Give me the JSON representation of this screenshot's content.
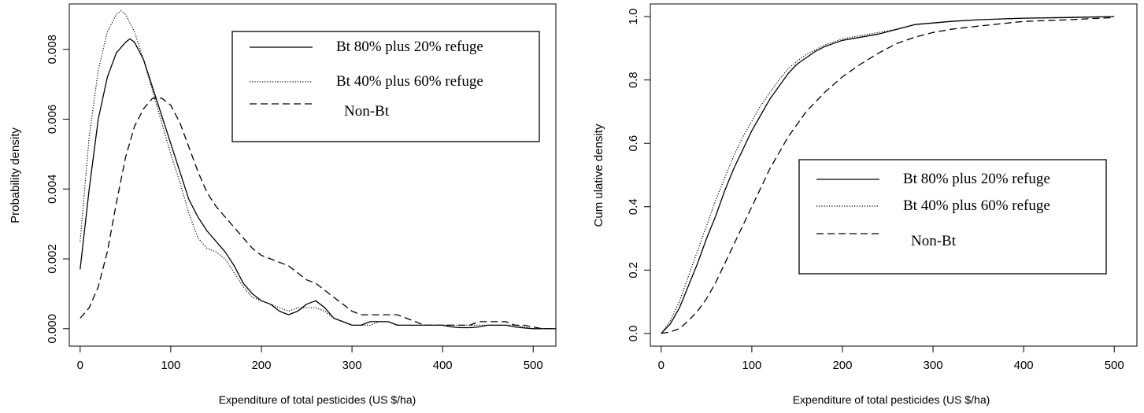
{
  "chart_data": [
    {
      "type": "line",
      "title": "",
      "xlabel": "Expenditure of total pesticides (US $/ha)",
      "ylabel": "Probability density",
      "xlim": [
        -12,
        525
      ],
      "ylim": [
        -0.0005,
        0.0093
      ],
      "xticks": [
        "0",
        "100",
        "200",
        "300",
        "400",
        "500"
      ],
      "yticks": [
        "0.000",
        "0.002",
        "0.004",
        "0.006",
        "0.008"
      ],
      "grid": false,
      "legend_position": "top-right",
      "series": [
        {
          "name": "Bt 80% plus 20% refuge",
          "line_style": "solid",
          "color": "#000000",
          "x": [
            0,
            10,
            20,
            30,
            40,
            50,
            55,
            60,
            70,
            80,
            90,
            100,
            110,
            120,
            130,
            140,
            150,
            160,
            170,
            180,
            190,
            200,
            210,
            220,
            230,
            240,
            250,
            260,
            270,
            280,
            290,
            300,
            310,
            320,
            330,
            340,
            350,
            360,
            370,
            380,
            390,
            400,
            410,
            420,
            430,
            440,
            450,
            460,
            470,
            480,
            490,
            500,
            510,
            525
          ],
          "y": [
            0.0017,
            0.004,
            0.006,
            0.0072,
            0.0079,
            0.0082,
            0.0083,
            0.0082,
            0.0077,
            0.0069,
            0.0061,
            0.0053,
            0.0045,
            0.0037,
            0.0032,
            0.0028,
            0.0025,
            0.0022,
            0.0018,
            0.0013,
            0.001,
            0.0008,
            0.0007,
            0.0005,
            0.0004,
            0.0005,
            0.0007,
            0.0008,
            0.0006,
            0.0003,
            0.0002,
            0.0001,
            0.0001,
            0.0002,
            0.0002,
            0.0002,
            0.0001,
            0.0001,
            0.0001,
            0.0001,
            0.0001,
            0.0001,
            5e-05,
            3e-05,
            3e-05,
            5e-05,
            0.0001,
            0.0001,
            0.0001,
            5e-05,
            2e-05,
            0.0,
            0.0,
            0.0
          ]
        },
        {
          "name": "Bt 40% plus 60% refuge",
          "line_style": "dotted",
          "color": "#000000",
          "x": [
            0,
            10,
            20,
            30,
            40,
            45,
            50,
            60,
            70,
            80,
            90,
            100,
            110,
            120,
            130,
            140,
            150,
            160,
            170,
            180,
            190,
            200,
            210,
            220,
            230,
            240,
            250,
            260,
            270,
            280,
            290,
            300,
            310,
            320,
            330,
            340,
            350,
            360,
            370,
            380,
            390,
            400,
            410,
            420,
            430,
            440,
            450,
            460,
            470,
            480,
            490,
            500,
            510,
            525
          ],
          "y": [
            0.0025,
            0.0055,
            0.0074,
            0.0085,
            0.009,
            0.0091,
            0.009,
            0.0085,
            0.0077,
            0.0068,
            0.0059,
            0.005,
            0.0042,
            0.0033,
            0.0026,
            0.0023,
            0.0022,
            0.002,
            0.0016,
            0.0012,
            0.0009,
            0.0008,
            0.0007,
            0.0006,
            0.0005,
            0.0006,
            0.0006,
            0.0006,
            0.0005,
            0.0003,
            0.0002,
            0.0001,
            0.0001,
            0.0001,
            0.0002,
            0.0002,
            0.0001,
            0.0001,
            0.0001,
            0.0001,
            0.0001,
            0.0001,
            0.0001,
            0.0001,
            0.0001,
            0.0001,
            0.0001,
            0.0001,
            0.0001,
            0.0001,
            5e-05,
            0.0,
            0.0,
            0.0
          ]
        },
        {
          "name": "Non-Bt",
          "line_style": "dashed",
          "color": "#000000",
          "x": [
            0,
            10,
            20,
            30,
            40,
            50,
            60,
            70,
            80,
            90,
            100,
            110,
            120,
            130,
            140,
            150,
            160,
            170,
            180,
            190,
            200,
            210,
            220,
            230,
            240,
            250,
            260,
            270,
            280,
            290,
            300,
            310,
            320,
            330,
            340,
            350,
            360,
            370,
            380,
            390,
            400,
            410,
            420,
            430,
            440,
            450,
            460,
            470,
            480,
            490,
            500,
            510,
            525
          ],
          "y": [
            0.0003,
            0.0006,
            0.0012,
            0.0022,
            0.0036,
            0.0049,
            0.0058,
            0.0063,
            0.0066,
            0.0066,
            0.0064,
            0.0059,
            0.0052,
            0.0045,
            0.0039,
            0.0035,
            0.0032,
            0.0029,
            0.0026,
            0.0023,
            0.0021,
            0.002,
            0.0019,
            0.0018,
            0.0016,
            0.0014,
            0.0013,
            0.0011,
            0.0009,
            0.0007,
            0.0005,
            0.0004,
            0.0004,
            0.0004,
            0.0004,
            0.0004,
            0.0003,
            0.0002,
            0.0001,
            0.0001,
            0.0001,
            0.0001,
            0.0001,
            0.0001,
            0.0002,
            0.0002,
            0.0002,
            0.0002,
            0.0001,
            0.0001,
            5e-05,
            0.0,
            0.0
          ]
        }
      ]
    },
    {
      "type": "line",
      "title": "",
      "xlabel": "Expenditure of total pesticides (US $/ha)",
      "ylabel": "Cum ulative density",
      "xlim": [
        -12,
        525
      ],
      "ylim": [
        -0.04,
        1.04
      ],
      "xticks": [
        "0",
        "100",
        "200",
        "300",
        "400",
        "500"
      ],
      "yticks": [
        "0.0",
        "0.2",
        "0.4",
        "0.6",
        "0.8",
        "1.0"
      ],
      "grid": false,
      "legend_position": "center-right",
      "series": [
        {
          "name": "Bt 80% plus 20% refuge",
          "line_style": "solid",
          "color": "#000000",
          "x": [
            0,
            10,
            20,
            30,
            40,
            50,
            60,
            70,
            80,
            90,
            100,
            110,
            120,
            130,
            140,
            150,
            160,
            170,
            180,
            190,
            200,
            220,
            240,
            260,
            280,
            300,
            320,
            350,
            400,
            450,
            500
          ],
          "y": [
            0.0,
            0.03,
            0.08,
            0.15,
            0.22,
            0.3,
            0.37,
            0.45,
            0.52,
            0.58,
            0.64,
            0.69,
            0.74,
            0.78,
            0.82,
            0.85,
            0.87,
            0.89,
            0.905,
            0.915,
            0.925,
            0.935,
            0.945,
            0.96,
            0.975,
            0.98,
            0.985,
            0.99,
            0.995,
            0.997,
            1.0
          ]
        },
        {
          "name": "Bt 40% plus 60% refuge",
          "line_style": "dotted",
          "color": "#000000",
          "x": [
            0,
            10,
            20,
            30,
            40,
            50,
            60,
            70,
            80,
            90,
            100,
            110,
            120,
            130,
            140,
            150,
            160,
            170,
            180,
            190,
            200,
            220,
            240,
            260,
            280,
            300,
            320,
            350,
            400,
            450,
            500
          ],
          "y": [
            0.0,
            0.04,
            0.1,
            0.18,
            0.26,
            0.34,
            0.42,
            0.49,
            0.56,
            0.62,
            0.67,
            0.72,
            0.76,
            0.8,
            0.835,
            0.86,
            0.88,
            0.895,
            0.91,
            0.92,
            0.93,
            0.94,
            0.95,
            0.96,
            0.975,
            0.98,
            0.985,
            0.99,
            0.995,
            0.998,
            1.0
          ]
        },
        {
          "name": "Non-Bt",
          "line_style": "dashed",
          "color": "#000000",
          "x": [
            0,
            10,
            20,
            30,
            40,
            50,
            60,
            70,
            80,
            90,
            100,
            110,
            120,
            130,
            140,
            150,
            160,
            170,
            180,
            190,
            200,
            220,
            240,
            260,
            280,
            300,
            320,
            350,
            400,
            450,
            500
          ],
          "y": [
            0.0,
            0.005,
            0.015,
            0.04,
            0.07,
            0.11,
            0.16,
            0.22,
            0.28,
            0.34,
            0.4,
            0.46,
            0.52,
            0.57,
            0.62,
            0.66,
            0.7,
            0.73,
            0.76,
            0.785,
            0.81,
            0.85,
            0.885,
            0.915,
            0.935,
            0.95,
            0.96,
            0.97,
            0.985,
            0.99,
            0.997
          ]
        }
      ]
    }
  ]
}
